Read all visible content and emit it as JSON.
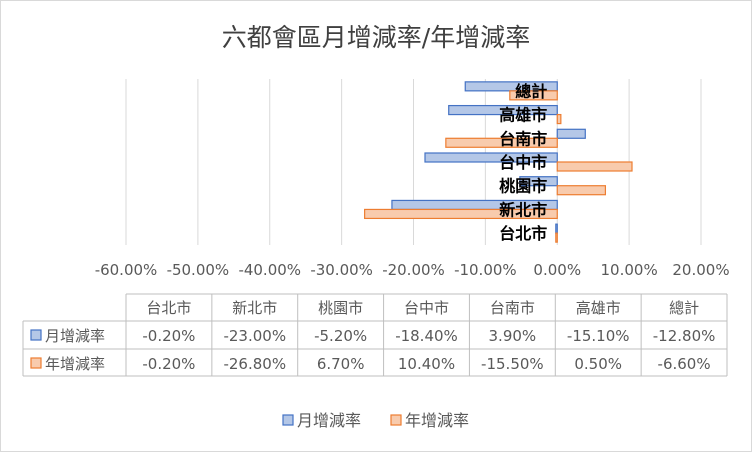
{
  "chart_data": {
    "type": "bar",
    "orientation": "horizontal",
    "title": "六都會區月增減率/年增減率",
    "categories": [
      "台北市",
      "新北市",
      "桃園市",
      "台中市",
      "台南市",
      "高雄市",
      "總計"
    ],
    "series": [
      {
        "name": "月增減率",
        "values": [
          -0.2,
          -23.0,
          -5.2,
          -18.4,
          3.9,
          -15.1,
          -12.8
        ],
        "labels": [
          "-0.20%",
          "-23.00%",
          "-5.20%",
          "-18.40%",
          "3.90%",
          "-15.10%",
          "-12.80%"
        ],
        "color": "#4472C4",
        "fill": "#B4C7E7"
      },
      {
        "name": "年增減率",
        "values": [
          -0.2,
          -26.8,
          6.7,
          10.4,
          -15.5,
          0.5,
          -6.6
        ],
        "labels": [
          "-0.20%",
          "-26.80%",
          "6.70%",
          "10.40%",
          "-15.50%",
          "0.50%",
          "-6.60%"
        ],
        "color": "#ED7D31",
        "fill": "#F8CBAD"
      }
    ],
    "xlim": [
      -60,
      20
    ],
    "xticks": [
      -60,
      -50,
      -40,
      -30,
      -20,
      -10,
      0,
      10,
      20
    ],
    "xtick_labels": [
      "-60.00%",
      "-50.00%",
      "-40.00%",
      "-30.00%",
      "-20.00%",
      "-10.00%",
      "0.00%",
      "10.00%",
      "20.00%"
    ],
    "grid": true,
    "legend_position": "bottom",
    "data_table": true
  }
}
